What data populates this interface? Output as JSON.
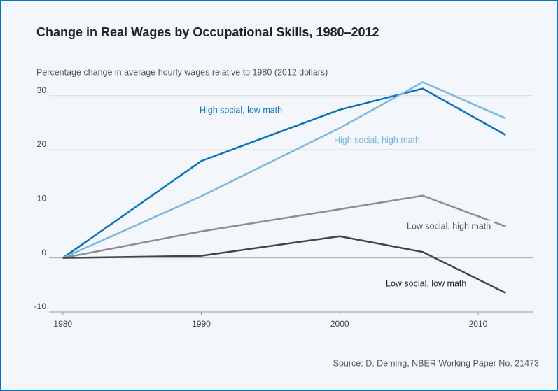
{
  "chart_data": {
    "type": "line",
    "title": "Change in Real Wages by Occupational Skills, 1980–2012",
    "y_axis_label": "Percentage change in average hourly wages relative to 1980 (2012 dollars)",
    "source": "Source: D. Deming, NBER Working Paper No. 21473",
    "x": [
      1980,
      1990,
      2000,
      2006,
      2012
    ],
    "series": [
      {
        "name": "High social, low math",
        "color": "#0a73b5",
        "values": [
          0,
          17.9,
          27.4,
          31.3,
          22.7
        ]
      },
      {
        "name": "High social, high math",
        "color": "#7ab8dd",
        "values": [
          0,
          11.4,
          24.0,
          32.5,
          25.8
        ]
      },
      {
        "name": "Low social, high math",
        "color": "#8d8d8d",
        "values": [
          0,
          4.9,
          9.0,
          11.5,
          5.8
        ]
      },
      {
        "name": "Low social, low math",
        "color": "#444444",
        "values": [
          0,
          0.4,
          4.0,
          1.1,
          -6.5
        ]
      }
    ],
    "xlim": [
      1979,
      2014
    ],
    "xticks": [
      1980,
      1990,
      2000,
      2010
    ],
    "ylim": [
      -10,
      33
    ],
    "yticks": [
      -10,
      0,
      10,
      20,
      30
    ],
    "grid": true
  }
}
